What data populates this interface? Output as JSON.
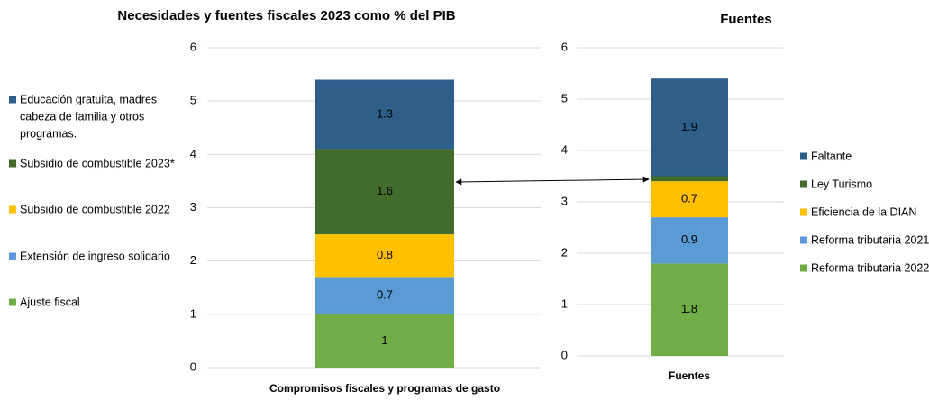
{
  "chart_data": [
    {
      "type": "bar",
      "stacked": true,
      "grid": true,
      "legend": "left",
      "title": "Necesidades y fuentes fiscales 2023 como % del PIB",
      "categories": [
        "Compromisos fiscales y programas de gasto"
      ],
      "ylim": [
        0,
        6
      ],
      "yticks": [
        0,
        1,
        2,
        3,
        4,
        5,
        6
      ],
      "series": [
        {
          "name": "Ajuste fiscal",
          "color": "#70ad47",
          "values": [
            1
          ]
        },
        {
          "name": "Extensión de ingreso solidario",
          "color": "#5b9bd5",
          "values": [
            0.7
          ]
        },
        {
          "name": "Subsidio de combustible 2022",
          "color": "#ffc000",
          "values": [
            0.8
          ]
        },
        {
          "name": "Subsidio de combustible 2023*",
          "color": "#426b2c",
          "values": [
            1.6
          ]
        },
        {
          "name": "Educación gratuita, madres cabeza de familia y otros programas.",
          "color": "#2e5f8a",
          "values": [
            1.3
          ]
        }
      ]
    },
    {
      "type": "bar",
      "stacked": true,
      "grid": true,
      "legend": "right",
      "title": "Fuentes",
      "categories": [
        "Fuentes"
      ],
      "ylim": [
        0,
        6
      ],
      "yticks": [
        0,
        1,
        2,
        3,
        4,
        5,
        6
      ],
      "series": [
        {
          "name": "Reforma tributaria 2022",
          "color": "#70ad47",
          "values": [
            1.8
          ]
        },
        {
          "name": "Reforma tributaria 2021",
          "color": "#5b9bd5",
          "values": [
            0.9
          ]
        },
        {
          "name": "Eficiencia de la DIAN",
          "color": "#ffc000",
          "values": [
            0.7
          ]
        },
        {
          "name": "Ley Turismo",
          "color": "#426b2c",
          "values": [
            0.1
          ]
        },
        {
          "name": "Faltante",
          "color": "#2e5f8a",
          "values": [
            1.9
          ]
        }
      ]
    }
  ]
}
